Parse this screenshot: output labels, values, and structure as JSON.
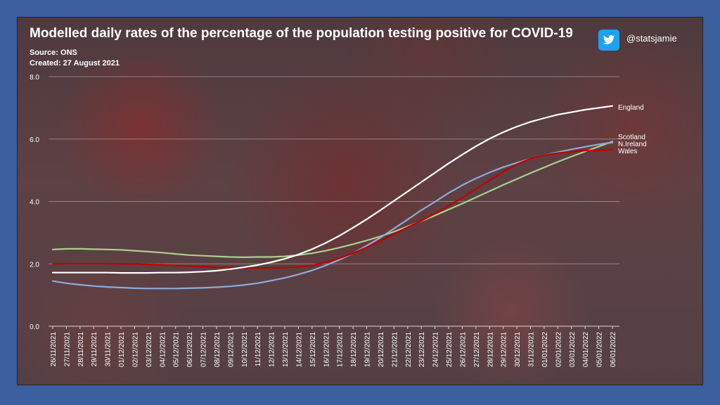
{
  "header": {
    "title": "Modelled daily rates of the percentage of the population testing positive for COVID-19",
    "source": "Source: ONS",
    "created": "Created: 27 August 2021",
    "handle": "@statsjamie"
  },
  "colors": {
    "background": "#3c5fa0",
    "England": "#ffffff",
    "Scotland": "#a9d18e",
    "N.Ireland": "#8faadc",
    "Wales": "#c00000",
    "twitter": "#1da1f2"
  },
  "chart_data": {
    "type": "line",
    "title": "Modelled daily rates of the percentage of the population testing positive for COVID-19",
    "xlabel": "",
    "ylabel": "",
    "ylim": [
      0,
      8
    ],
    "yticks": [
      "0.0",
      "2.0",
      "4.0",
      "6.0",
      "8.0"
    ],
    "grid": true,
    "legend": "end-of-line labels (right)",
    "categories": [
      "26/11/2021",
      "27/11/2021",
      "28/11/2021",
      "29/11/2021",
      "30/11/2021",
      "01/12/2021",
      "02/12/2021",
      "03/12/2021",
      "04/12/2021",
      "05/12/2021",
      "06/12/2021",
      "07/12/2021",
      "08/12/2021",
      "09/12/2021",
      "10/12/2021",
      "11/12/2021",
      "12/12/2021",
      "13/12/2021",
      "14/12/2021",
      "15/12/2021",
      "16/12/2021",
      "17/12/2021",
      "18/12/2021",
      "19/12/2021",
      "20/12/2021",
      "21/12/2021",
      "22/12/2021",
      "23/12/2021",
      "24/12/2021",
      "25/12/2021",
      "26/12/2021",
      "27/12/2021",
      "28/12/2021",
      "29/12/2021",
      "30/12/2021",
      "31/12/2021",
      "01/01/2022",
      "02/01/2022",
      "03/01/2022",
      "04/01/2022",
      "05/01/2022",
      "06/01/2022"
    ],
    "series": [
      {
        "name": "England",
        "values": [
          1.72,
          1.72,
          1.72,
          1.72,
          1.72,
          1.71,
          1.71,
          1.71,
          1.72,
          1.72,
          1.73,
          1.75,
          1.78,
          1.83,
          1.89,
          1.96,
          2.05,
          2.16,
          2.3,
          2.47,
          2.67,
          2.9,
          3.16,
          3.43,
          3.72,
          4.02,
          4.32,
          4.62,
          4.92,
          5.22,
          5.5,
          5.77,
          6.01,
          6.22,
          6.4,
          6.55,
          6.67,
          6.78,
          6.86,
          6.94,
          7.0,
          7.06
        ]
      },
      {
        "name": "Scotland",
        "values": [
          2.46,
          2.48,
          2.48,
          2.47,
          2.46,
          2.45,
          2.42,
          2.39,
          2.36,
          2.32,
          2.28,
          2.26,
          2.24,
          2.22,
          2.21,
          2.22,
          2.22,
          2.24,
          2.28,
          2.34,
          2.42,
          2.52,
          2.63,
          2.75,
          2.88,
          3.03,
          3.2,
          3.37,
          3.55,
          3.74,
          3.93,
          4.13,
          4.33,
          4.53,
          4.72,
          4.91,
          5.09,
          5.27,
          5.44,
          5.6,
          5.76,
          5.92
        ]
      },
      {
        "name": "N.Ireland",
        "values": [
          1.45,
          1.38,
          1.33,
          1.29,
          1.26,
          1.24,
          1.22,
          1.21,
          1.21,
          1.21,
          1.22,
          1.23,
          1.25,
          1.28,
          1.32,
          1.38,
          1.46,
          1.55,
          1.66,
          1.79,
          1.95,
          2.13,
          2.34,
          2.58,
          2.84,
          3.13,
          3.42,
          3.72,
          3.99,
          4.27,
          4.52,
          4.74,
          4.93,
          5.1,
          5.24,
          5.37,
          5.48,
          5.58,
          5.67,
          5.75,
          5.83,
          5.89
        ]
      },
      {
        "name": "Wales",
        "values": [
          2.0,
          2.01,
          2.01,
          2.01,
          2.01,
          2.0,
          2.0,
          1.98,
          1.97,
          1.95,
          1.93,
          1.91,
          1.89,
          1.88,
          1.87,
          1.87,
          1.87,
          1.88,
          1.9,
          1.95,
          2.05,
          2.18,
          2.34,
          2.53,
          2.74,
          2.96,
          3.17,
          3.38,
          3.61,
          3.86,
          4.12,
          4.4,
          4.68,
          4.95,
          5.19,
          5.37,
          5.48,
          5.55,
          5.6,
          5.63,
          5.64,
          5.66
        ]
      }
    ]
  }
}
